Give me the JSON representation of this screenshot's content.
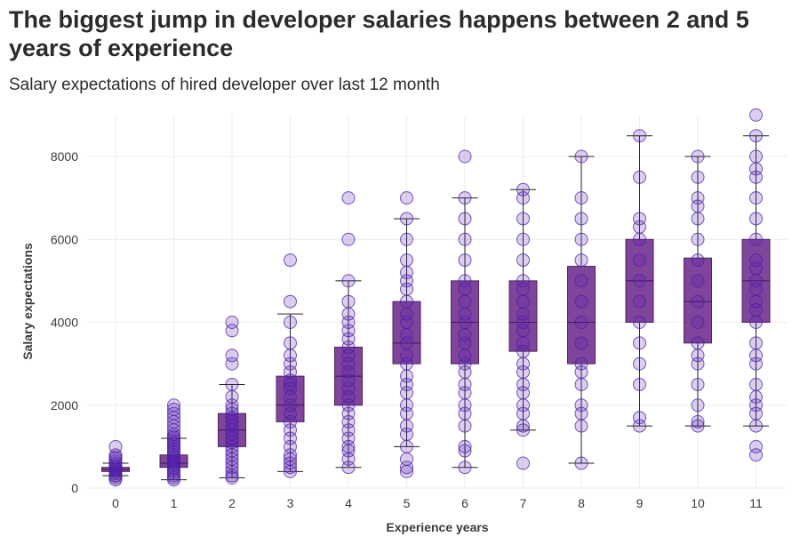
{
  "title": "The biggest jump in developer salaries happens between 2 and 5 years of experience",
  "subtitle": "Salary expectations of hired developer over last 12 month",
  "colors": {
    "box_fill": "#7a3a96",
    "point_fill": "#5b1fb8",
    "point_stroke": "#4a20a0",
    "whisker": "#222222",
    "grid": "#ececec"
  },
  "chart_data": {
    "type": "box",
    "xlabel": "Experience years",
    "ylabel": "Salary expectations",
    "ylim": [
      0,
      9000
    ],
    "yticks": [
      0,
      2000,
      4000,
      6000,
      8000
    ],
    "grid": true,
    "categories": [
      "0",
      "1",
      "2",
      "3",
      "4",
      "5",
      "6",
      "7",
      "8",
      "9",
      "10",
      "11"
    ],
    "boxes": [
      {
        "x": "0",
        "whisker_low": 300,
        "q1": 400,
        "median": 450,
        "q3": 500,
        "whisker_high": 600
      },
      {
        "x": "1",
        "whisker_low": 200,
        "q1": 500,
        "median": 600,
        "q3": 800,
        "whisker_high": 1200
      },
      {
        "x": "2",
        "whisker_low": 250,
        "q1": 1000,
        "median": 1400,
        "q3": 1800,
        "whisker_high": 2500
      },
      {
        "x": "3",
        "whisker_low": 400,
        "q1": 1600,
        "median": 2000,
        "q3": 2700,
        "whisker_high": 4200
      },
      {
        "x": "4",
        "whisker_low": 500,
        "q1": 2000,
        "median": 2700,
        "q3": 3400,
        "whisker_high": 5000
      },
      {
        "x": "5",
        "whisker_low": 1000,
        "q1": 3000,
        "median": 3500,
        "q3": 4500,
        "whisker_high": 6500
      },
      {
        "x": "6",
        "whisker_low": 500,
        "q1": 3000,
        "median": 4000,
        "q3": 5000,
        "whisker_high": 7000
      },
      {
        "x": "7",
        "whisker_low": 1400,
        "q1": 3300,
        "median": 4000,
        "q3": 5000,
        "whisker_high": 7200
      },
      {
        "x": "8",
        "whisker_low": 600,
        "q1": 3000,
        "median": 4000,
        "q3": 5350,
        "whisker_high": 8000
      },
      {
        "x": "9",
        "whisker_low": 1500,
        "q1": 4000,
        "median": 5000,
        "q3": 6000,
        "whisker_high": 8500
      },
      {
        "x": "10",
        "whisker_low": 1500,
        "q1": 3500,
        "median": 4500,
        "q3": 5550,
        "whisker_high": 8000
      },
      {
        "x": "11",
        "whisker_low": 1500,
        "q1": 4000,
        "median": 5000,
        "q3": 6000,
        "whisker_high": 8500
      }
    ],
    "points": [
      {
        "x": "0",
        "values": [
          200,
          250,
          300,
          300,
          350,
          400,
          400,
          450,
          450,
          500,
          500,
          550,
          600,
          650,
          700,
          750,
          800,
          1000
        ]
      },
      {
        "x": "1",
        "values": [
          200,
          250,
          300,
          350,
          400,
          450,
          500,
          550,
          600,
          650,
          700,
          750,
          800,
          850,
          900,
          950,
          1000,
          1050,
          1100,
          1150,
          1200,
          1250,
          1300,
          1400,
          1500,
          1600,
          1700,
          1800,
          1900,
          2000
        ]
      },
      {
        "x": "2",
        "values": [
          250,
          300,
          400,
          500,
          600,
          700,
          800,
          900,
          1000,
          1100,
          1200,
          1300,
          1400,
          1500,
          1600,
          1700,
          1800,
          1900,
          2000,
          2200,
          2500,
          3000,
          3200,
          3800,
          4000
        ]
      },
      {
        "x": "3",
        "values": [
          400,
          500,
          600,
          700,
          800,
          1000,
          1200,
          1400,
          1600,
          1800,
          2000,
          2200,
          2400,
          2500,
          2600,
          2800,
          3000,
          3200,
          3500,
          4000,
          4500,
          5500
        ]
      },
      {
        "x": "4",
        "values": [
          500,
          700,
          900,
          1000,
          1200,
          1400,
          1600,
          1800,
          2000,
          2200,
          2400,
          2600,
          2800,
          3000,
          3200,
          3400,
          3600,
          3800,
          4000,
          4200,
          4500,
          5000,
          6000,
          7000
        ]
      },
      {
        "x": "5",
        "values": [
          400,
          500,
          700,
          1000,
          1300,
          1500,
          1800,
          2000,
          2300,
          2500,
          2700,
          3000,
          3200,
          3500,
          3700,
          4000,
          4200,
          4500,
          4800,
          5000,
          5200,
          5500,
          6000,
          6500,
          7000
        ]
      },
      {
        "x": "6",
        "values": [
          500,
          900,
          1000,
          1500,
          1800,
          2000,
          2300,
          2500,
          2800,
          3000,
          3200,
          3500,
          3700,
          4000,
          4200,
          4500,
          4800,
          5000,
          5500,
          6000,
          6500,
          7000,
          8000
        ]
      },
      {
        "x": "7",
        "values": [
          600,
          1400,
          1500,
          1800,
          2000,
          2300,
          2500,
          2800,
          3000,
          3300,
          3500,
          3800,
          4000,
          4200,
          4500,
          4800,
          5000,
          5500,
          6000,
          6500,
          7000,
          7200
        ]
      },
      {
        "x": "8",
        "values": [
          600,
          1500,
          1800,
          2000,
          2500,
          2800,
          3000,
          3500,
          4000,
          4500,
          5000,
          5500,
          6000,
          6500,
          7000,
          8000
        ]
      },
      {
        "x": "9",
        "values": [
          1500,
          1700,
          2500,
          3000,
          3500,
          4000,
          4500,
          5000,
          5500,
          6000,
          6300,
          6500,
          7500,
          8500
        ]
      },
      {
        "x": "10",
        "values": [
          1500,
          1600,
          2000,
          2500,
          3000,
          3200,
          3500,
          4000,
          4500,
          5000,
          5500,
          6000,
          6500,
          6800,
          7000,
          7500,
          8000
        ]
      },
      {
        "x": "11",
        "values": [
          800,
          1000,
          1500,
          1800,
          2000,
          2200,
          2500,
          3000,
          3200,
          3500,
          4000,
          4300,
          4500,
          4800,
          5000,
          5300,
          5500,
          6000,
          6500,
          7000,
          7500,
          7700,
          8000,
          8500,
          9000
        ]
      }
    ]
  }
}
